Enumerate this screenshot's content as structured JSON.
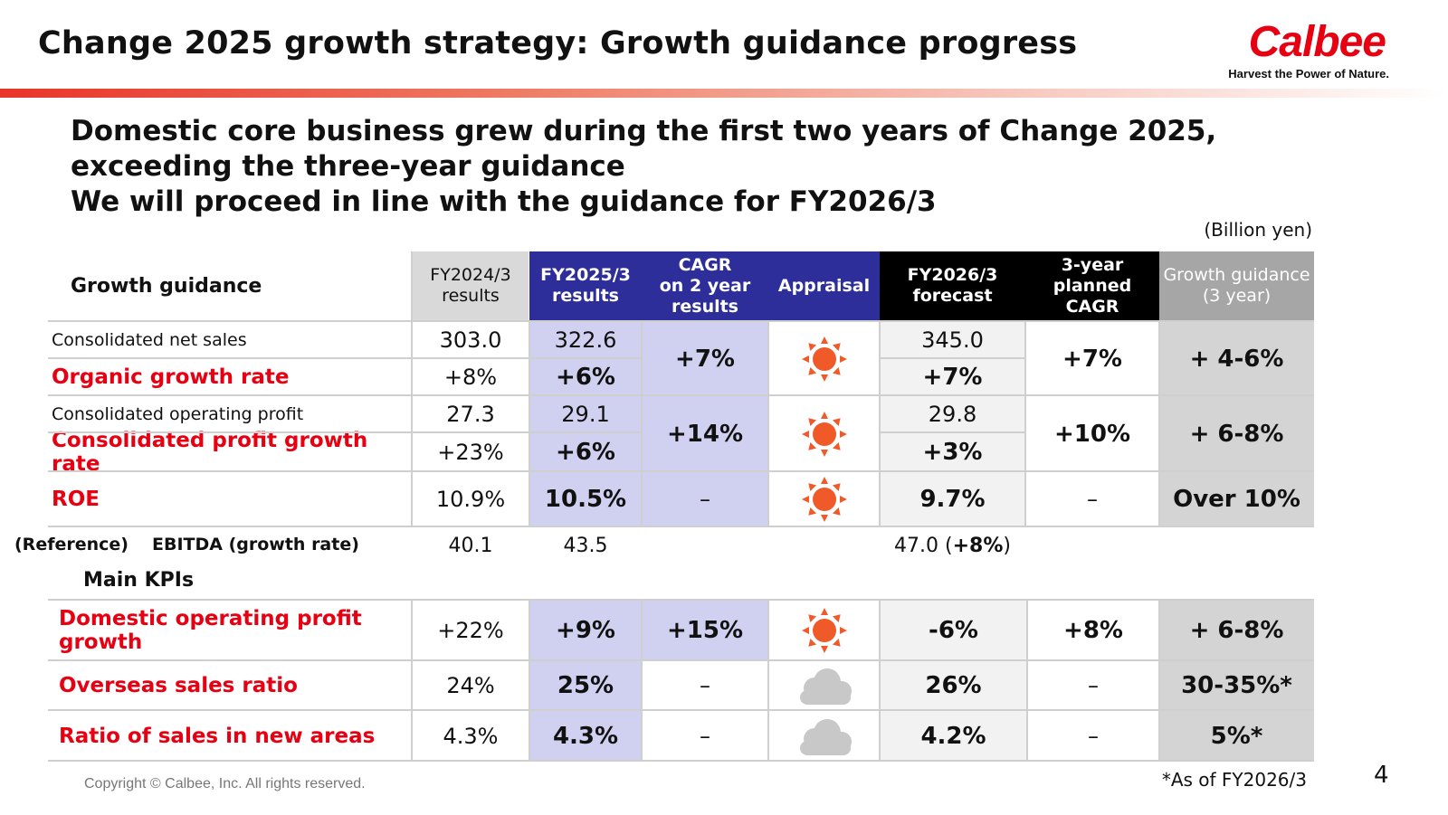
{
  "header": {
    "title": "Change 2025 growth strategy: Growth guidance progress",
    "logo_text": "Calbee",
    "logo_tagline": "Harvest the Power of Nature."
  },
  "headline": {
    "line1": "Domestic core business grew during the first two years of Change 2025,",
    "line2": "exceeding the three-year guidance",
    "line3": "We will proceed in line with the guidance for FY2026/3"
  },
  "unit_note": "(Billion yen)",
  "colors": {
    "brand_red": "#e60012",
    "header_blue": "#2e2e9b",
    "header_black": "#000000",
    "header_gray": "#a6a6a6",
    "sun": "#f05a28",
    "cloud": "#c8c8c8"
  },
  "table": {
    "corner_label": "Growth guidance",
    "columns": {
      "fy2024_line1": "FY2024/3",
      "fy2024_line2": "results",
      "fy2025_line1": "FY2025/3",
      "fy2025_line2": "results",
      "cagr_line1": "CAGR",
      "cagr_line2": "on 2 year",
      "cagr_line3": "results",
      "appraisal": "Appraisal",
      "fy2026_line1": "FY2026/3",
      "fy2026_line2": "forecast",
      "planned_line1": "3-year",
      "planned_line2": "planned",
      "planned_line3": "CAGR",
      "guidance_line1": "Growth guidance",
      "guidance_line2": "(3 year)"
    },
    "sales": {
      "label": "Consolidated net sales",
      "fy2024": "303.0",
      "fy2025": "322.6",
      "fy2026": "345.0",
      "growth_label": "Organic growth rate",
      "growth_fy2024": "+8%",
      "growth_fy2025": "+6%",
      "growth_fy2026": "+7%",
      "cagr": "+7%",
      "appraisal_icon": "sun-icon",
      "planned": "+7%",
      "guidance": "+ 4-6%"
    },
    "profit": {
      "label": "Consolidated operating profit",
      "fy2024": "27.3",
      "fy2025": "29.1",
      "fy2026": "29.8",
      "growth_label": "Consolidated profit growth rate",
      "growth_fy2024": "+23%",
      "growth_fy2025": "+6%",
      "growth_fy2026": "+3%",
      "cagr": "+14%",
      "appraisal_icon": "sun-icon",
      "planned": "+10%",
      "guidance": "+ 6-8%"
    },
    "roe": {
      "label": "ROE",
      "fy2024": "10.9%",
      "fy2025": "10.5%",
      "cagr": "–",
      "appraisal_icon": "sun-icon",
      "fy2026": "9.7%",
      "planned": "–",
      "guidance": "Over 10%"
    },
    "ebitda": {
      "ref_label": "(Reference)",
      "label": "EBITDA (growth rate)",
      "fy2024": "40.1",
      "fy2025": "43.5",
      "fy2026_value": "47.0",
      "fy2026_open": "(",
      "fy2026_rate": "+8%",
      "fy2026_close": ")"
    },
    "kpi_heading": "Main KPIs",
    "kpis": [
      {
        "label": "Domestic operating profit growth",
        "fy2024": "+22%",
        "fy2025": "+9%",
        "cagr": "+15%",
        "appraisal_icon": "sun-icon",
        "fy2026": "-6%",
        "planned": "+8%",
        "guidance": "+ 6-8%"
      },
      {
        "label": "Overseas sales ratio",
        "fy2024": "24%",
        "fy2025": "25%",
        "cagr": "–",
        "appraisal_icon": "cloud-icon",
        "fy2026": "26%",
        "planned": "–",
        "guidance": "30-35%*"
      },
      {
        "label": "Ratio of sales in new areas",
        "fy2024": "4.3%",
        "fy2025": "4.3%",
        "cagr": "–",
        "appraisal_icon": "cloud-icon",
        "fy2026": "4.2%",
        "planned": "–",
        "guidance": "5%*"
      }
    ]
  },
  "footer": {
    "copyright": "Copyright © Calbee, Inc. All rights reserved.",
    "footnote": "*As of FY2026/3",
    "page_number": "4"
  }
}
